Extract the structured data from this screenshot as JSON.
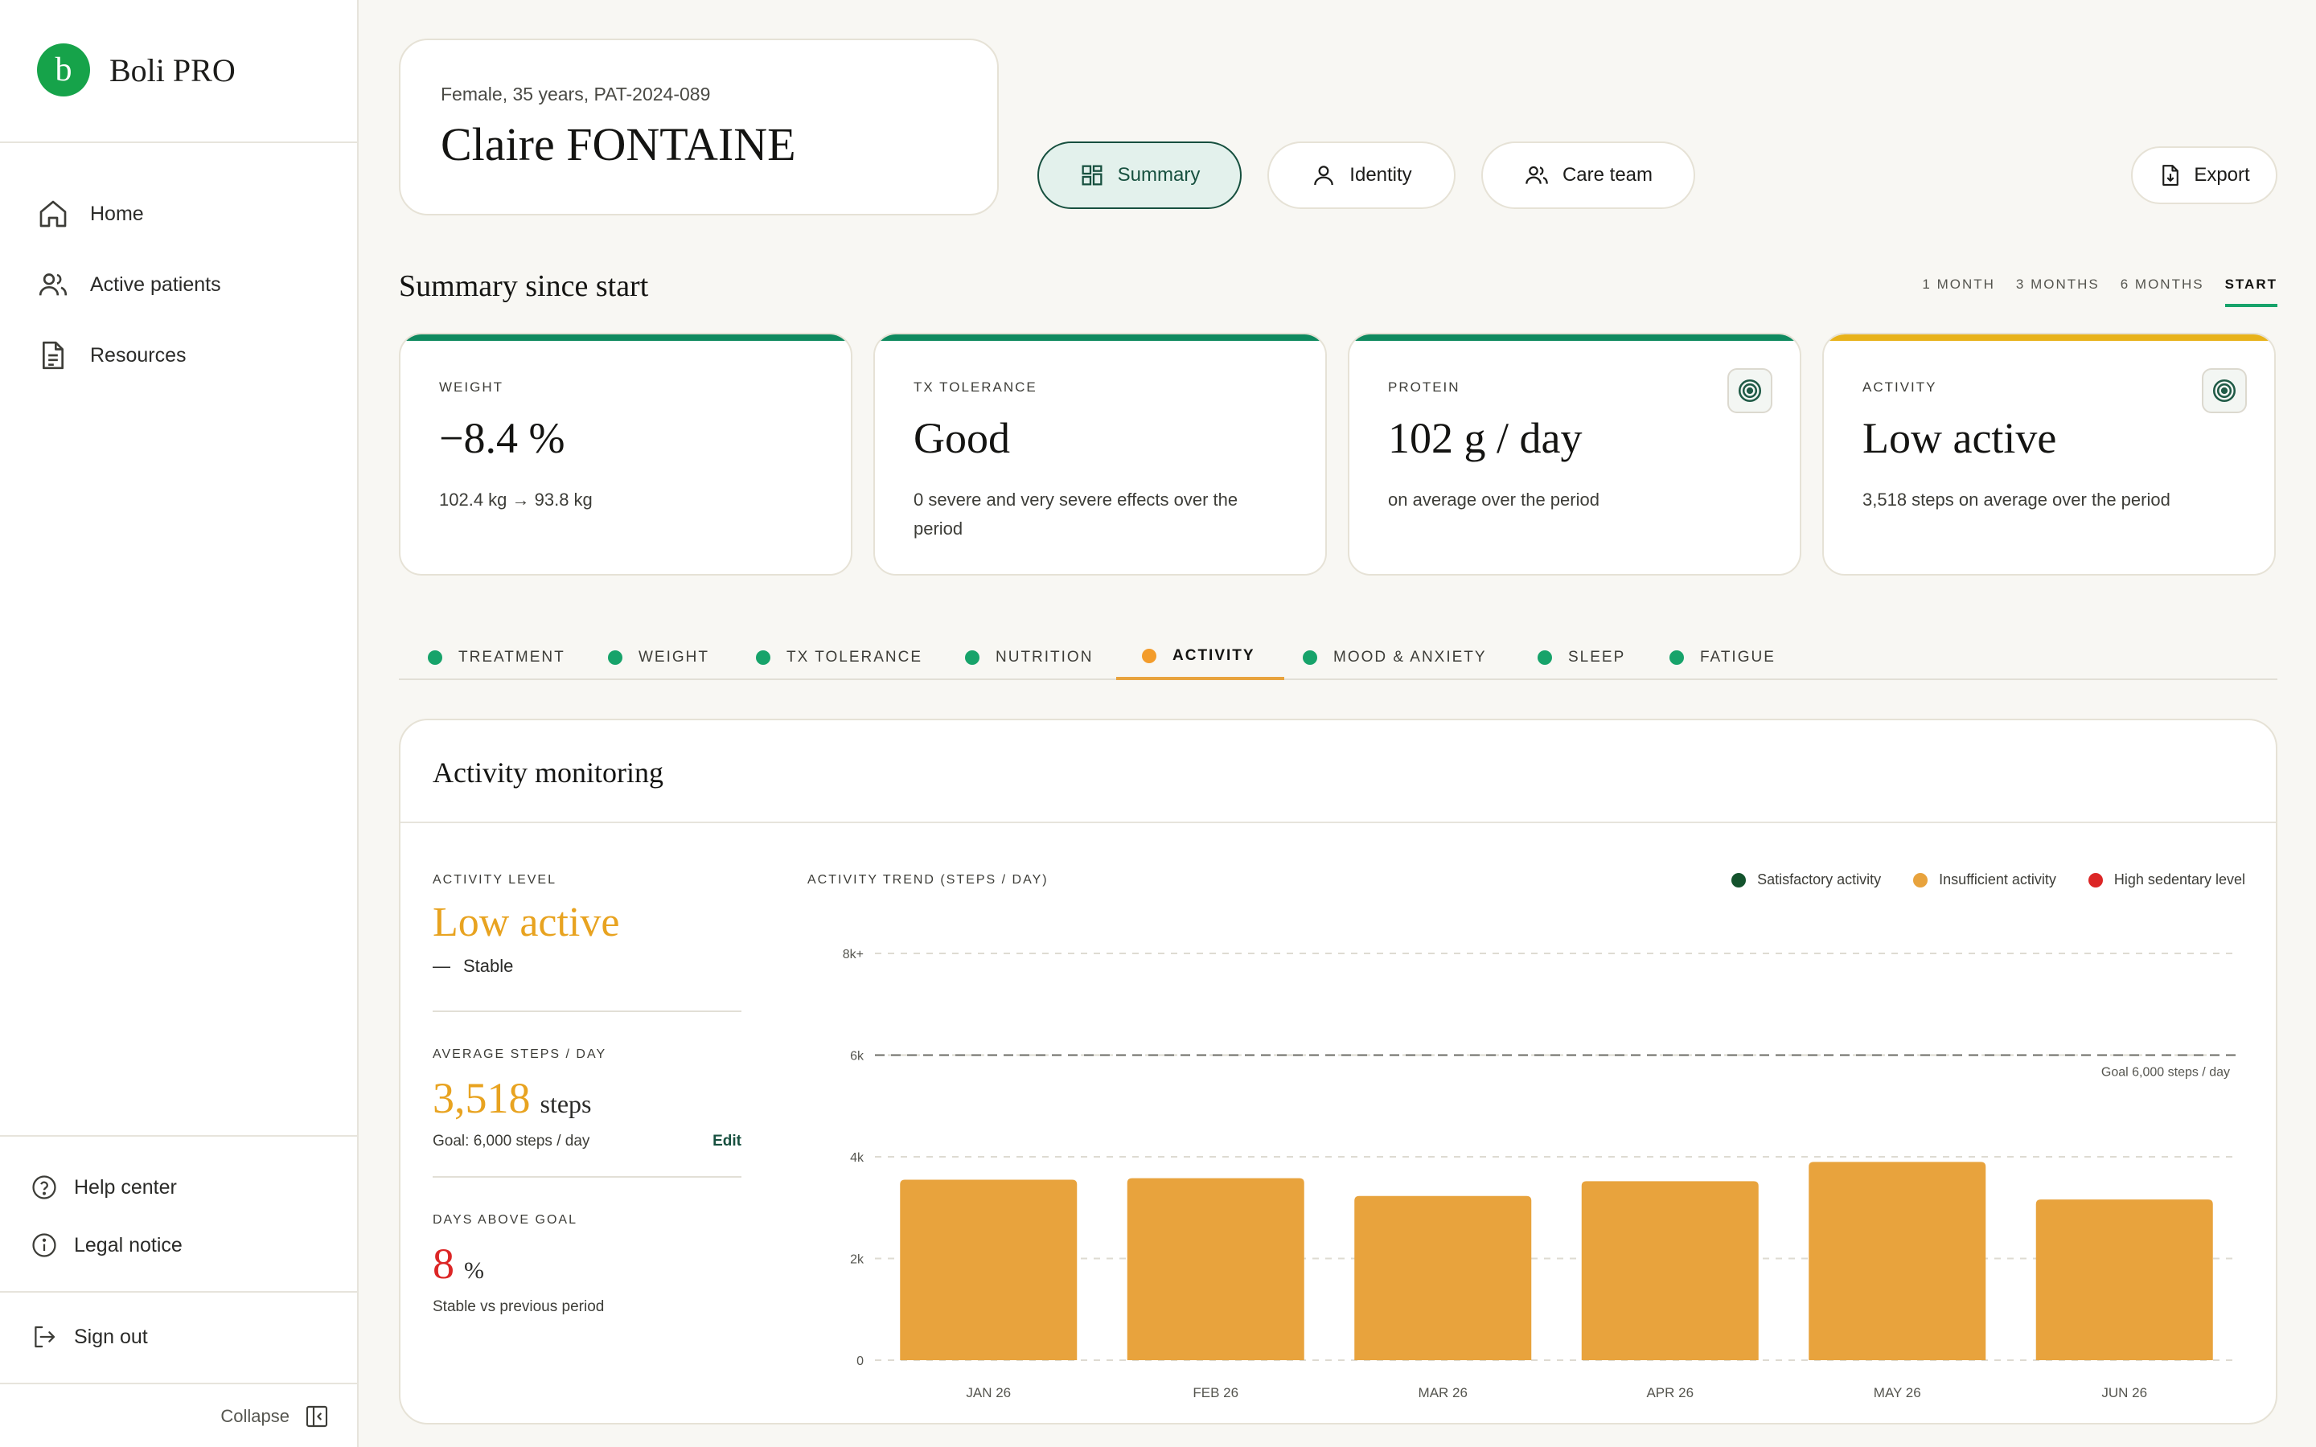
{
  "brand": {
    "logo_letter": "b",
    "name": "Boli PRO"
  },
  "sidebar": {
    "nav": [
      {
        "label": "Home",
        "icon": "home-icon"
      },
      {
        "label": "Active patients",
        "icon": "users-icon"
      },
      {
        "label": "Resources",
        "icon": "document-icon"
      }
    ],
    "help": "Help center",
    "legal": "Legal notice",
    "signout": "Sign out",
    "collapse": "Collapse"
  },
  "patient": {
    "subtitle": "Female, 35 years, PAT-2024-089",
    "name": "Claire FONTAINE"
  },
  "header_tabs": {
    "summary": "Summary",
    "identity": "Identity",
    "care_team": "Care team",
    "export": "Export"
  },
  "summary": {
    "title": "Summary since start",
    "ranges": [
      "1 MONTH",
      "3 MONTHS",
      "6 MONTHS",
      "START"
    ],
    "active_range": "START"
  },
  "kpis": [
    {
      "label": "WEIGHT",
      "value": "−8.4 %",
      "note": "102.4 kg → 93.8 kg",
      "accent": "#0f8a5f",
      "badge": false
    },
    {
      "label": "TX TOLERANCE",
      "value": "Good",
      "note": "0 severe and very severe effects over the period",
      "accent": "#0f8a5f",
      "badge": false
    },
    {
      "label": "PROTEIN",
      "value": "102 g / day",
      "note": "on average over the period",
      "accent": "#0f8a5f",
      "badge": true
    },
    {
      "label": "ACTIVITY",
      "value": "Low active",
      "note": "3,518 steps on average over the period",
      "accent": "#e8b21a",
      "badge": true
    }
  ],
  "tabs": [
    {
      "label": "TREATMENT",
      "active": false
    },
    {
      "label": "WEIGHT",
      "active": false
    },
    {
      "label": "TX TOLERANCE",
      "active": false
    },
    {
      "label": "NUTRITION",
      "active": false
    },
    {
      "label": "ACTIVITY",
      "active": true
    },
    {
      "label": "MOOD & ANXIETY",
      "active": false
    },
    {
      "label": "SLEEP",
      "active": false
    },
    {
      "label": "FATIGUE",
      "active": false
    }
  ],
  "activity": {
    "title": "Activity monitoring",
    "level_label": "ACTIVITY LEVEL",
    "level_value": "Low active",
    "level_trend_icon": "—",
    "level_trend": "Stable",
    "avg_label": "AVERAGE STEPS / DAY",
    "avg_value": "3,518",
    "avg_unit": "steps",
    "goal_text": "Goal: 6,000 steps / day",
    "edit": "Edit",
    "days_label": "DAYS ABOVE GOAL",
    "days_value": "8",
    "days_unit": "%",
    "days_note": "Stable vs previous period"
  },
  "legend": [
    {
      "label": "Satisfactory activity",
      "color": "#14532d"
    },
    {
      "label": "Insufficient activity",
      "color": "#e8a33d"
    },
    {
      "label": "High sedentary level",
      "color": "#dc2626"
    }
  ],
  "chart_data": {
    "type": "bar",
    "title": "ACTIVITY TREND (STEPS / DAY)",
    "categories": [
      "JAN 26",
      "FEB 26",
      "MAR 26",
      "APR 26",
      "MAY 26",
      "JUN 26"
    ],
    "values": [
      3550,
      3580,
      3230,
      3520,
      3900,
      3160
    ],
    "ylim": [
      0,
      8000
    ],
    "y_ticks": [
      0,
      2000,
      4000,
      6000,
      8000
    ],
    "y_tick_labels": [
      "0",
      "2k",
      "4k",
      "6k",
      "8k+"
    ],
    "goal": 6000,
    "goal_label": "Goal 6,000 steps / day",
    "bar_color": "#e8a33d",
    "grid": true
  }
}
